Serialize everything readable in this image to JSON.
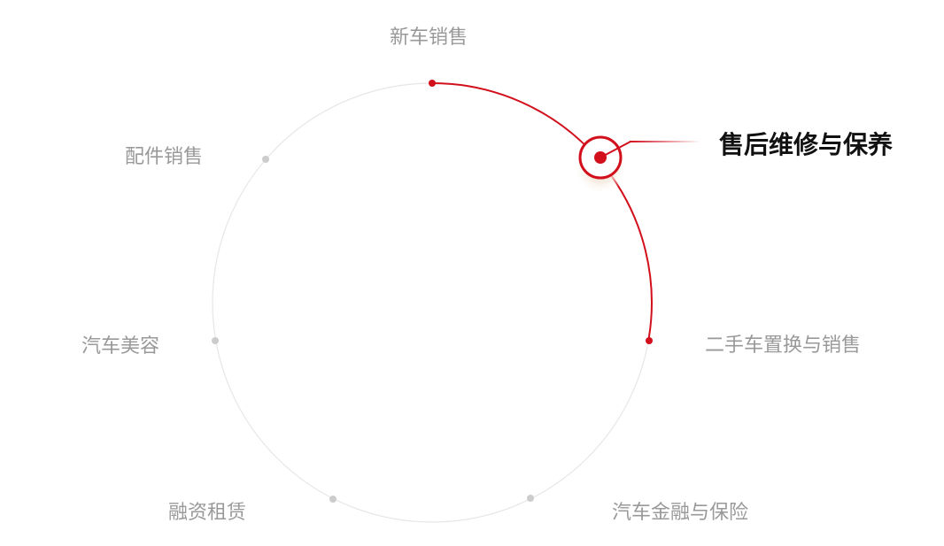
{
  "accent_color": "#d2101c",
  "items": [
    {
      "label": "新车销售"
    },
    {
      "label": "售后维修与保养",
      "active": true
    },
    {
      "label": "二手车置换与销售"
    },
    {
      "label": "汽车金融与保险"
    },
    {
      "label": "融资租赁"
    },
    {
      "label": "汽车美容"
    },
    {
      "label": "配件销售"
    }
  ]
}
